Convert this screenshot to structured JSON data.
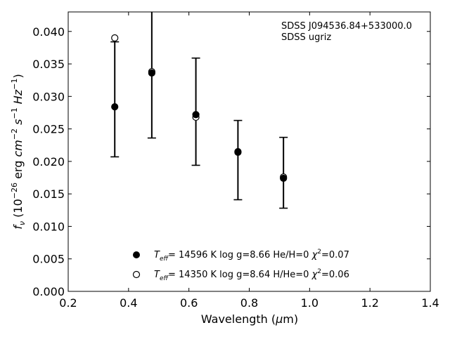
{
  "chart_data": {
    "type": "scatter",
    "annotations": [
      "SDSS J094536.84+533000.0",
      "SDSS ugriz"
    ],
    "xlabel": "Wavelength (μm)",
    "ylabel": "f_ν (10^-26 erg cm^-2 s^-1 Hz^-1)",
    "xlim": [
      0.2,
      1.4
    ],
    "ylim": [
      0.0,
      0.043
    ],
    "x_ticks": [
      0.2,
      0.4,
      0.6,
      0.8,
      1.0,
      1.2,
      1.4
    ],
    "x_tick_labels": [
      "0.2",
      "0.4",
      "0.6",
      "0.8",
      "1.0",
      "1.2",
      "1.4"
    ],
    "y_ticks": [
      0.0,
      0.005,
      0.01,
      0.015,
      0.02,
      0.025,
      0.03,
      0.035,
      0.04
    ],
    "y_tick_labels": [
      "0.000",
      "0.005",
      "0.010",
      "0.015",
      "0.020",
      "0.025",
      "0.030",
      "0.035",
      "0.040"
    ],
    "grid": false,
    "legend_position": "bottom-center",
    "observed": {
      "x": [
        0.3543,
        0.477,
        0.6231,
        0.7625,
        0.9134
      ],
      "y": [
        0.0284,
        0.0336,
        0.0271,
        0.0213,
        0.0173
      ],
      "yerr_low": [
        0.0207,
        0.0236,
        0.0194,
        0.0141,
        0.0128
      ],
      "yerr_high": [
        0.0384,
        0.0432,
        0.0359,
        0.0263,
        0.0237
      ]
    },
    "series": [
      {
        "name": "Teff= 14596 K  log g=8.66  He/H=0  χ2=0.07",
        "label_parts": {
          "t": "T",
          "sub": "eff",
          "rest": "= 14596 K  log g=8.66  He/H=0  ",
          "chi": "χ",
          "sup": "2",
          "chi_val": "=0.07"
        },
        "marker": "filled-circle",
        "x": [
          0.3543,
          0.477,
          0.6231,
          0.7625,
          0.9134
        ],
        "y": [
          0.0284,
          0.0336,
          0.0272,
          0.0214,
          0.0174
        ]
      },
      {
        "name": "Teff= 14350 K  log g=8.64  H/He=0  χ2=0.06",
        "label_parts": {
          "t": "T",
          "sub": "eff",
          "rest": "= 14350 K  log g=8.64  H/He=0  ",
          "chi": "χ",
          "sup": "2",
          "chi_val": "=0.06"
        },
        "marker": "open-circle",
        "x": [
          0.3543,
          0.477,
          0.6231,
          0.7625,
          0.9134
        ],
        "y": [
          0.039,
          0.0338,
          0.0268,
          0.0215,
          0.0176
        ]
      }
    ],
    "colors": {
      "marker": "#000000",
      "axes": "#000000",
      "background": "#ffffff"
    }
  }
}
